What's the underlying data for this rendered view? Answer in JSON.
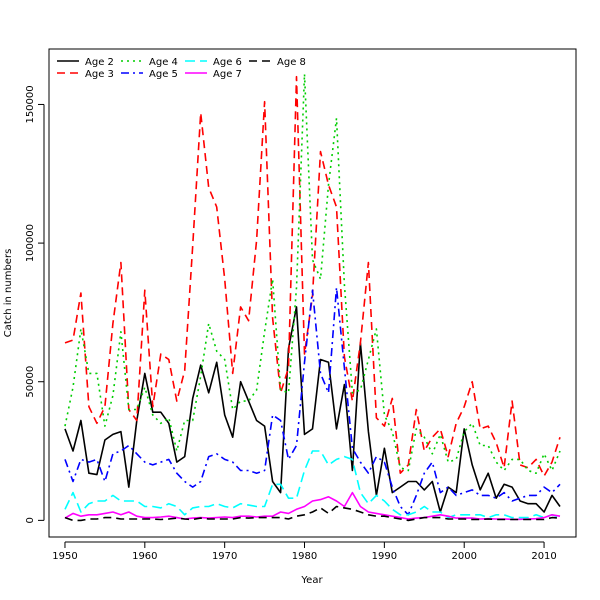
{
  "chart_data": {
    "type": "line",
    "title": "",
    "xlabel": "Year",
    "ylabel": "Catch in numbers",
    "xlim": [
      1948,
      2014
    ],
    "ylim": [
      -6000,
      170000
    ],
    "x_ticks": [
      1950,
      1960,
      1970,
      1980,
      1990,
      2000,
      2010
    ],
    "y_ticks": [
      0,
      50000,
      100000,
      150000
    ],
    "y_tick_labels": [
      "0",
      "50000",
      "100000",
      "150000"
    ],
    "grid": false,
    "legend_position": "top-left",
    "x": [
      1950,
      1951,
      1952,
      1953,
      1954,
      1955,
      1956,
      1957,
      1958,
      1959,
      1960,
      1961,
      1962,
      1963,
      1964,
      1965,
      1966,
      1967,
      1968,
      1969,
      1970,
      1971,
      1972,
      1973,
      1974,
      1975,
      1976,
      1977,
      1978,
      1979,
      1980,
      1981,
      1982,
      1983,
      1984,
      1985,
      1986,
      1987,
      1988,
      1989,
      1990,
      1991,
      1992,
      1993,
      1994,
      1995,
      1996,
      1997,
      1998,
      1999,
      2000,
      2001,
      2002,
      2003,
      2004,
      2005,
      2006,
      2007,
      2008,
      2009,
      2010,
      2011,
      2012
    ],
    "series": [
      {
        "name": "Age 2",
        "color": "#000000",
        "dash": "solid",
        "values": [
          33000,
          25000,
          36000,
          17000,
          16500,
          29000,
          31000,
          32000,
          12000,
          36000,
          53000,
          39000,
          39000,
          35000,
          21000,
          23000,
          44000,
          56000,
          46000,
          57000,
          38000,
          30000,
          50000,
          43000,
          36000,
          34000,
          14000,
          10000,
          62000,
          77000,
          31000,
          33000,
          58000,
          57000,
          33000,
          49000,
          18000,
          64000,
          32000,
          9000,
          26000,
          10000,
          12000,
          14000,
          14000,
          11000,
          14000,
          3000,
          12000,
          10000,
          33000,
          20000,
          11000,
          17000,
          8000,
          13000,
          12000,
          7000,
          6000,
          6000,
          3000,
          9000,
          5000
        ]
      },
      {
        "name": "Age 3",
        "color": "#ff0000",
        "dash": "8 5",
        "values": [
          64000,
          65000,
          82000,
          41000,
          35000,
          41000,
          71000,
          93000,
          40000,
          36000,
          83000,
          41000,
          60000,
          58000,
          43000,
          54000,
          99000,
          147000,
          120000,
          113000,
          87000,
          53000,
          77000,
          72000,
          101000,
          151000,
          73000,
          46000,
          55000,
          160000,
          60000,
          81000,
          133000,
          121000,
          113000,
          59000,
          43000,
          64000,
          93000,
          37000,
          34000,
          44000,
          17000,
          20000,
          40000,
          25000,
          30000,
          33000,
          23000,
          35000,
          41000,
          50000,
          33000,
          34000,
          28000,
          19000,
          43000,
          20000,
          19000,
          22000,
          16000,
          21000,
          30000
        ]
      },
      {
        "name": "Age 4",
        "color": "#00cd00",
        "dash": "2 4",
        "values": [
          34000,
          48000,
          69000,
          53000,
          53000,
          34000,
          45000,
          68000,
          40000,
          40000,
          48000,
          38000,
          35000,
          37000,
          25000,
          36000,
          36000,
          52000,
          71000,
          61000,
          58000,
          40000,
          43000,
          43000,
          47000,
          68000,
          87000,
          47000,
          46000,
          84000,
          161000,
          94000,
          87000,
          121000,
          145000,
          85000,
          46000,
          47000,
          58000,
          69000,
          38000,
          32000,
          19000,
          18000,
          33000,
          30000,
          24000,
          31000,
          21000,
          22000,
          32000,
          35000,
          27000,
          27000,
          21000,
          18000,
          22000,
          22000,
          18000,
          17000,
          24000,
          18000,
          25000
        ]
      },
      {
        "name": "Age 5",
        "color": "#0000ff",
        "dash": "8 4 2 4",
        "values": [
          22000,
          14000,
          22000,
          21000,
          22000,
          14000,
          24000,
          25000,
          27000,
          24000,
          21000,
          20000,
          21000,
          22000,
          17000,
          14000,
          12000,
          14000,
          23000,
          24000,
          22000,
          21000,
          18000,
          18000,
          17000,
          18000,
          38000,
          36000,
          22000,
          27000,
          57000,
          83000,
          53000,
          46000,
          84000,
          55000,
          26000,
          21000,
          17000,
          23000,
          21000,
          12000,
          5000,
          2000,
          9000,
          17000,
          21000,
          10000,
          12000,
          9000,
          10000,
          11000,
          9000,
          9000,
          8000,
          10000,
          7000,
          8000,
          9000,
          9000,
          12000,
          10000,
          13000
        ]
      },
      {
        "name": "Age 6",
        "color": "#00ffff",
        "dash": "10 5",
        "values": [
          4000,
          10000,
          3000,
          6000,
          7000,
          7000,
          9000,
          7000,
          7000,
          7000,
          5000,
          5000,
          4500,
          6000,
          5000,
          2000,
          4500,
          5000,
          5000,
          6000,
          5000,
          4500,
          6000,
          5500,
          5000,
          5000,
          13000,
          13000,
          8000,
          8000,
          18000,
          25000,
          25000,
          20000,
          22000,
          23000,
          22000,
          10000,
          6000,
          9000,
          7000,
          4000,
          2000,
          2000,
          3000,
          5000,
          3000,
          3000,
          1000,
          2000,
          2000,
          2000,
          2000,
          1000,
          2000,
          2000,
          1000,
          1000,
          1000,
          2000,
          1000,
          2000,
          1000
        ]
      },
      {
        "name": "Age 7",
        "color": "#ff00ff",
        "dash": "solid",
        "values": [
          800,
          2500,
          1500,
          2000,
          2000,
          2500,
          3000,
          2000,
          3000,
          1500,
          1000,
          1000,
          1200,
          1500,
          1000,
          500,
          800,
          1000,
          800,
          1000,
          1200,
          1000,
          1500,
          1500,
          1200,
          1500,
          1500,
          3000,
          2500,
          4000,
          5000,
          7000,
          7500,
          8500,
          7000,
          5000,
          10000,
          5000,
          3000,
          2500,
          2000,
          1500,
          1000,
          500,
          800,
          1000,
          1500,
          2000,
          1500,
          800,
          800,
          800,
          500,
          600,
          500,
          500,
          400,
          400,
          500,
          600,
          1000,
          2000,
          1500
        ]
      },
      {
        "name": "Age 8",
        "color": "#000000",
        "dash": "8 5",
        "values": [
          1000,
          0,
          0,
          500,
          500,
          1000,
          1000,
          500,
          500,
          500,
          500,
          500,
          300,
          500,
          800,
          500,
          300,
          800,
          500,
          500,
          500,
          500,
          1000,
          800,
          1000,
          1000,
          1000,
          1000,
          500,
          1500,
          2000,
          3000,
          4500,
          2500,
          5000,
          4500,
          4000,
          3000,
          2000,
          1500,
          1500,
          1000,
          500,
          0,
          500,
          1000,
          1000,
          1000,
          500,
          500,
          500,
          300,
          300,
          500,
          300,
          300,
          300,
          300,
          300,
          300,
          300,
          1000,
          800
        ]
      }
    ]
  }
}
